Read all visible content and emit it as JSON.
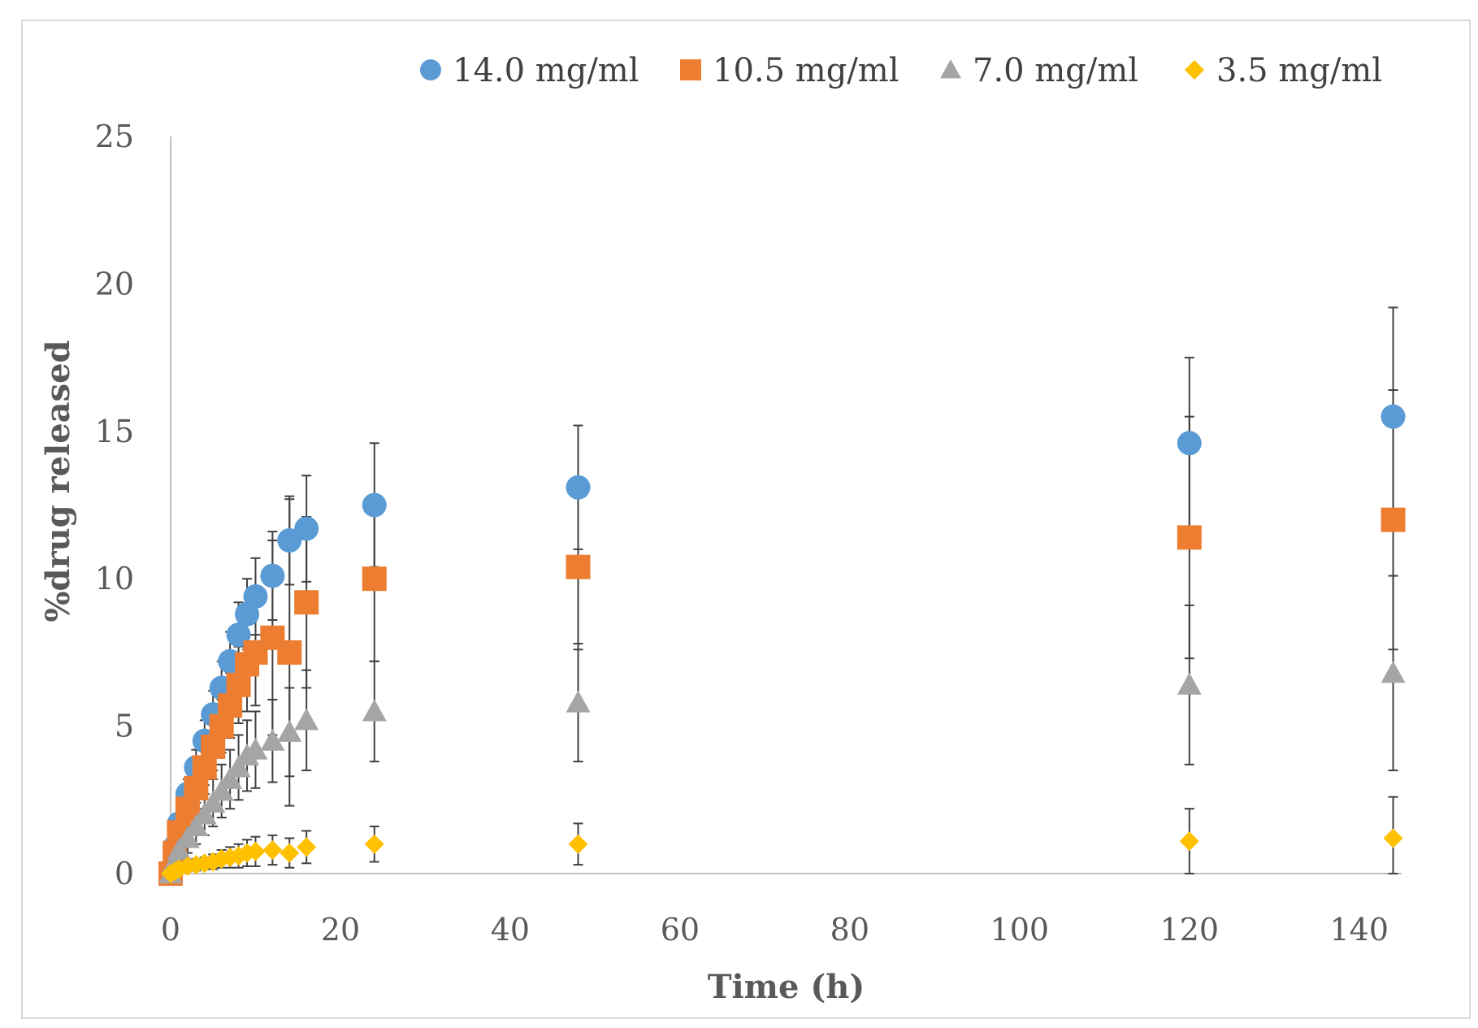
{
  "chart_data": {
    "type": "scatter",
    "title": "",
    "xlabel": "Time (h)",
    "ylabel": "%drug released",
    "xlim": [
      0,
      145
    ],
    "ylim": [
      0,
      25
    ],
    "xticks": [
      0,
      20,
      40,
      60,
      80,
      100,
      120,
      140
    ],
    "yticks": [
      0,
      5,
      10,
      15,
      20,
      25
    ],
    "x_tick_labels": [
      "0",
      "20",
      "40",
      "60",
      "80",
      "100",
      "120",
      "140"
    ],
    "y_tick_labels": [
      "0",
      "5",
      "10",
      "15",
      "20",
      "25"
    ],
    "grid": false,
    "legend_position": "top",
    "error_bar_color": "#404040",
    "x": [
      0,
      0.5,
      1,
      2,
      3,
      4,
      5,
      6,
      7,
      8,
      9,
      10,
      12,
      14,
      16,
      24,
      48,
      120,
      144
    ],
    "series": [
      {
        "name": "14.0 mg/ml",
        "marker": "circle",
        "color": "#5b9bd5",
        "values": [
          0,
          0.9,
          1.7,
          2.7,
          3.6,
          4.5,
          5.4,
          6.3,
          7.2,
          8.1,
          8.8,
          9.4,
          10.1,
          11.3,
          11.7,
          12.5,
          13.1,
          14.6,
          15.5
        ],
        "errors": [
          0,
          0.2,
          0.3,
          0.5,
          0.6,
          0.7,
          0.8,
          0.9,
          1.0,
          1.1,
          1.2,
          1.3,
          1.5,
          1.5,
          1.8,
          2.1,
          2.1,
          2.9,
          3.7
        ]
      },
      {
        "name": "10.5 mg/ml",
        "marker": "square",
        "color": "#ed7d31",
        "values": [
          0,
          0.7,
          1.4,
          2.2,
          2.9,
          3.6,
          4.3,
          5.0,
          5.7,
          6.4,
          7.1,
          7.5,
          8.0,
          7.5,
          9.2,
          10.0,
          10.4,
          11.4,
          12.0
        ],
        "errors": [
          0,
          0.2,
          0.3,
          0.4,
          0.5,
          0.6,
          0.8,
          0.9,
          1.1,
          1.3,
          1.6,
          1.8,
          3.3,
          5.2,
          2.9,
          2.8,
          2.8,
          4.1,
          4.4
        ]
      },
      {
        "name": "7.0 mg/ml",
        "marker": "triangle",
        "color": "#a5a5a5",
        "values": [
          0,
          0.4,
          0.8,
          1.2,
          1.6,
          2.0,
          2.4,
          2.8,
          3.2,
          3.6,
          4.0,
          4.2,
          4.5,
          4.8,
          5.2,
          5.5,
          5.8,
          6.4,
          6.8
        ],
        "errors": [
          0,
          0.2,
          0.4,
          0.5,
          0.6,
          0.7,
          0.8,
          0.9,
          1.0,
          1.1,
          1.2,
          1.3,
          1.4,
          1.5,
          1.7,
          1.7,
          2.0,
          2.7,
          3.3
        ]
      },
      {
        "name": "3.5 mg/ml",
        "marker": "diamond",
        "color": "#ffc000",
        "values": [
          0,
          0.08,
          0.15,
          0.25,
          0.3,
          0.35,
          0.4,
          0.5,
          0.55,
          0.6,
          0.7,
          0.75,
          0.8,
          0.7,
          0.9,
          1.0,
          1.0,
          1.1,
          1.2
        ],
        "errors": [
          0,
          0.05,
          0.1,
          0.15,
          0.2,
          0.2,
          0.25,
          0.3,
          0.35,
          0.4,
          0.45,
          0.5,
          0.5,
          0.5,
          0.55,
          0.6,
          0.7,
          1.1,
          1.4
        ]
      }
    ]
  }
}
